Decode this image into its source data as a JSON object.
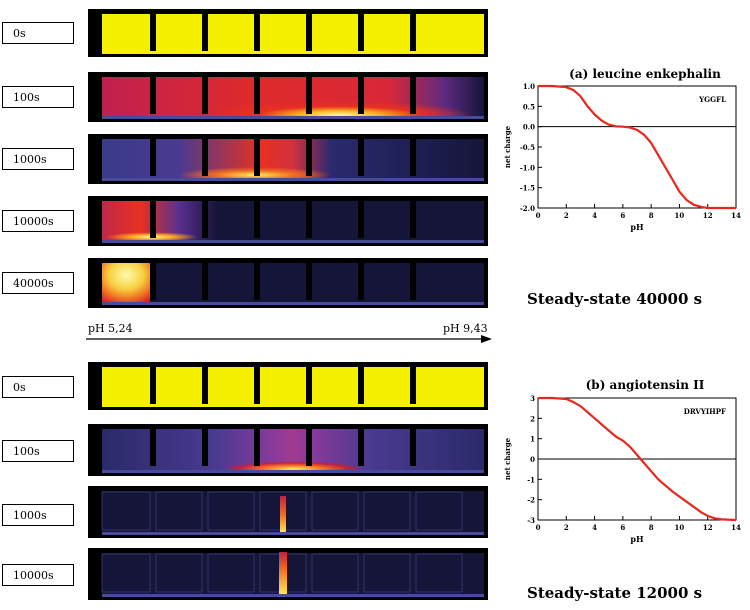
{
  "section_a": {
    "time_labels": [
      "0s",
      "100s",
      "1000s",
      "10000s",
      "40000s"
    ],
    "ph_start": "pH 5,24",
    "ph_end": "pH 9,43",
    "panel_title": "(a) leucine enkephalin",
    "peptide": "YGGFL",
    "steady_state": "Steady-state 40000 s",
    "ylabel": "net charge",
    "xlabel": "pH",
    "yticks": [
      "1.0",
      "0.5",
      "0.0",
      "-0.5",
      "-1.0",
      "-1.5",
      "-2.0"
    ],
    "xticks": [
      "0",
      "2",
      "4",
      "6",
      "8",
      "10",
      "12",
      "14"
    ]
  },
  "section_b": {
    "time_labels": [
      "0s",
      "100s",
      "1000s",
      "10000s"
    ],
    "panel_title": "(b) angiotensin II",
    "peptide": "DRVYIHPF",
    "steady_state": "Steady-state 12000 s",
    "ylabel": "net charge",
    "xlabel": "pH",
    "yticks": [
      "3",
      "2",
      "1",
      "0",
      "-1",
      "-2",
      "-3"
    ],
    "xticks": [
      "0",
      "2",
      "4",
      "6",
      "8",
      "10",
      "12",
      "14"
    ]
  },
  "colors": {
    "yellow": "#f5f000",
    "dark": "#15153a",
    "red": "#e83020",
    "curve": "#e8281c"
  },
  "chart_data": [
    {
      "type": "line",
      "title": "(a) leucine enkephalin",
      "xlabel": "pH",
      "ylabel": "net charge",
      "xlim": [
        0,
        14
      ],
      "ylim": [
        -2,
        1
      ],
      "series": [
        {
          "name": "YGGFL",
          "x": [
            0,
            1,
            2,
            2.5,
            3,
            3.5,
            4,
            4.5,
            5,
            5.5,
            6,
            6.5,
            7,
            7.5,
            8,
            8.5,
            9,
            9.5,
            10,
            10.5,
            11,
            11.5,
            12,
            13,
            14
          ],
          "y": [
            1.0,
            1.0,
            0.97,
            0.9,
            0.75,
            0.5,
            0.3,
            0.15,
            0.05,
            0.01,
            0.0,
            -0.02,
            -0.08,
            -0.2,
            -0.4,
            -0.7,
            -1.0,
            -1.3,
            -1.6,
            -1.8,
            -1.92,
            -1.97,
            -2.0,
            -2.0,
            -2.0
          ]
        }
      ]
    },
    {
      "type": "line",
      "title": "(b) angiotensin II",
      "xlabel": "pH",
      "ylabel": "net charge",
      "xlim": [
        0,
        14
      ],
      "ylim": [
        -3,
        3
      ],
      "series": [
        {
          "name": "DRVYIHPF",
          "x": [
            0,
            1,
            2,
            2.5,
            3,
            3.5,
            4,
            4.5,
            5,
            5.5,
            6,
            6.5,
            7,
            7.5,
            8,
            8.5,
            9,
            9.5,
            10,
            10.5,
            11,
            11.5,
            12,
            12.5,
            13,
            14
          ],
          "y": [
            3.0,
            3.0,
            2.95,
            2.8,
            2.6,
            2.3,
            2.0,
            1.7,
            1.4,
            1.1,
            0.9,
            0.6,
            0.2,
            -0.2,
            -0.6,
            -1.0,
            -1.3,
            -1.6,
            -1.85,
            -2.1,
            -2.35,
            -2.6,
            -2.8,
            -2.92,
            -2.97,
            -3.0
          ]
        }
      ]
    }
  ]
}
